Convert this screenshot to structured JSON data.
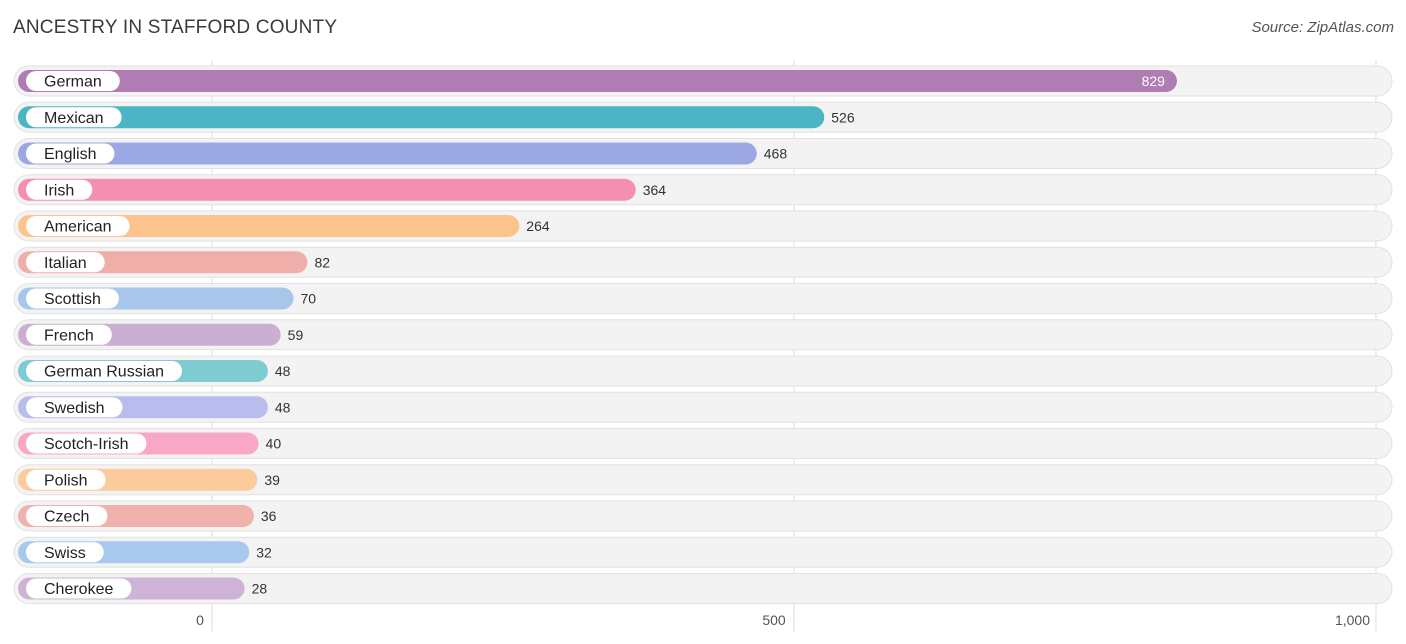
{
  "header": {
    "title": "ANCESTRY IN STAFFORD COUNTY",
    "source": "Source: ZipAtlas.com"
  },
  "chart_data": {
    "type": "bar",
    "orientation": "horizontal",
    "title": "ANCESTRY IN STAFFORD COUNTY",
    "categories": [
      "German",
      "Mexican",
      "English",
      "Irish",
      "American",
      "Italian",
      "Scottish",
      "French",
      "German Russian",
      "Swedish",
      "Scotch-Irish",
      "Polish",
      "Czech",
      "Swiss",
      "Cherokee"
    ],
    "values": [
      829,
      526,
      468,
      364,
      264,
      82,
      70,
      59,
      48,
      48,
      40,
      39,
      36,
      32,
      28
    ],
    "value_labels": [
      "829",
      "526",
      "468",
      "364",
      "264",
      "82",
      "70",
      "59",
      "48",
      "48",
      "40",
      "39",
      "36",
      "32",
      "28"
    ],
    "colors": [
      "#b07cb4",
      "#4bb5c4",
      "#9ca8e3",
      "#f48fb1",
      "#fcc38c",
      "#f0aeaa",
      "#a7c6ea",
      "#cbafd2",
      "#7ecbd1",
      "#b8bdee",
      "#f8a8c6",
      "#fccb9c",
      "#f1b2ad",
      "#a9c8ee",
      "#cfb3d6"
    ],
    "xlim": [
      0,
      1000
    ],
    "ticks": [
      0,
      500,
      1000
    ],
    "tick_labels": [
      "0",
      "500",
      "1,000"
    ],
    "grid": true
  }
}
